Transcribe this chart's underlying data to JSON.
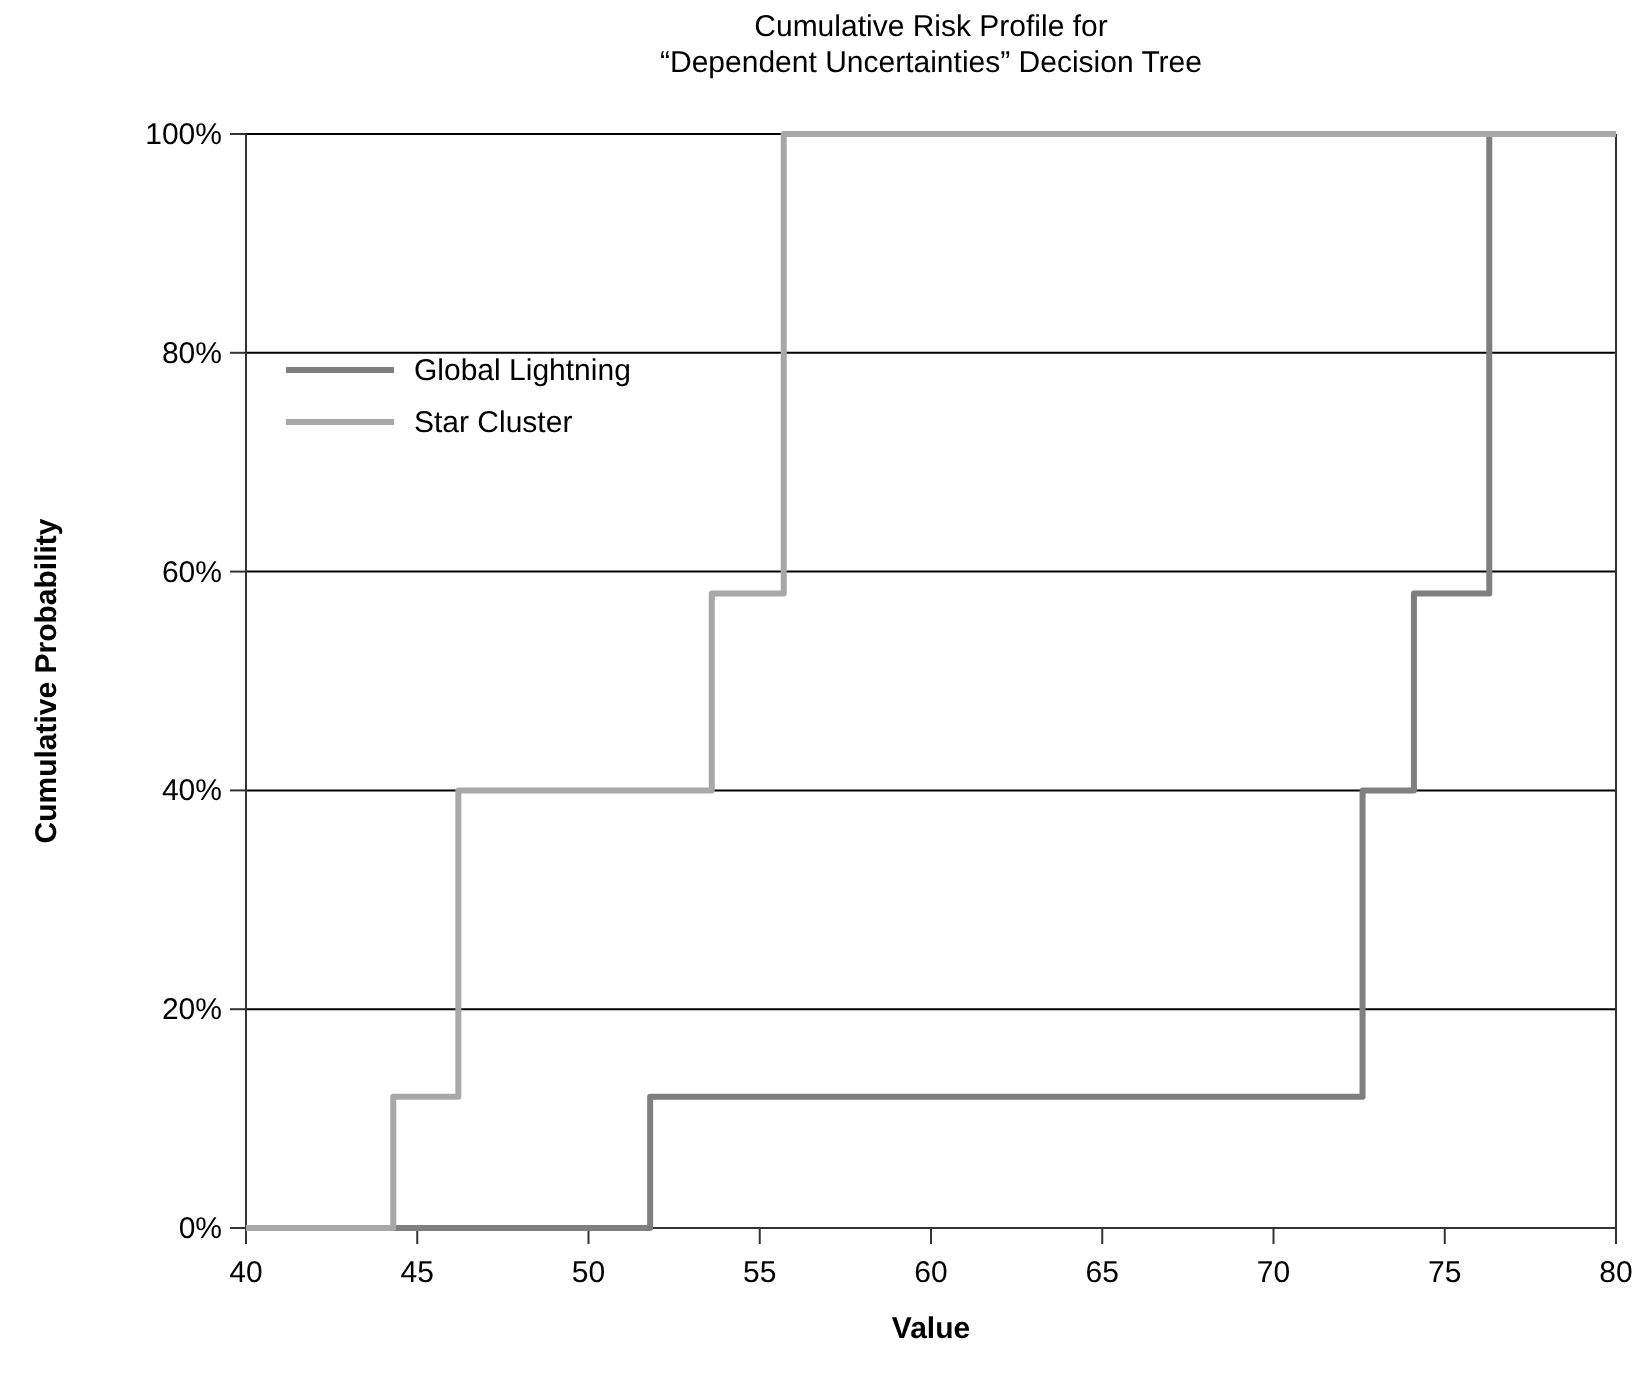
{
  "chart_data": {
    "type": "step",
    "title": "Cumulative Risk Profile for\n“Dependent Uncertainties” Decision Tree",
    "xlabel": "Value",
    "ylabel": "Cumulative Probability",
    "series": [
      {
        "name": "Global Lightning",
        "color": "#7f7f7f",
        "x": [
          40,
          51.8,
          72.6,
          74.1,
          76.3,
          80
        ],
        "values": [
          0,
          12,
          40,
          58,
          100,
          100
        ]
      },
      {
        "name": "Star Cluster",
        "color": "#a8a8a8",
        "x": [
          40,
          44.3,
          46.2,
          53.6,
          55.7,
          80
        ],
        "values": [
          0,
          12,
          40,
          58,
          100,
          100
        ]
      }
    ],
    "xlim": [
      40,
      80
    ],
    "xticks": [
      40,
      45,
      50,
      55,
      60,
      65,
      70,
      75,
      80
    ],
    "ylim": [
      0,
      100
    ],
    "yticks": [
      {
        "value": 0,
        "label": "0%"
      },
      {
        "value": 20,
        "label": "20%"
      },
      {
        "value": 40,
        "label": "40%"
      },
      {
        "value": 60,
        "label": "60%"
      },
      {
        "value": 80,
        "label": "80%"
      },
      {
        "value": 100,
        "label": "100%"
      }
    ],
    "grid": "y",
    "legend": "left",
    "line_style": "solid",
    "marker": "none"
  }
}
